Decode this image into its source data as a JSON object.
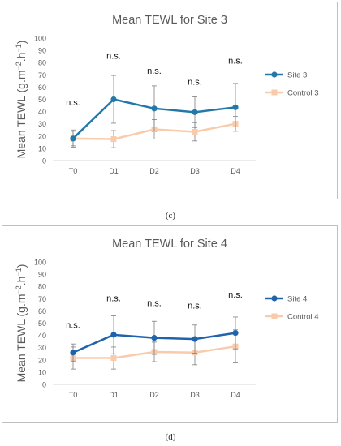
{
  "chart_data": [
    {
      "type": "line",
      "title": "Mean TEWL for Site 3",
      "ylabel_parts": [
        "Mean TEWL (g.m",
        "−2",
        ".h",
        "−1",
        ")"
      ],
      "categories": [
        "T0",
        "D1",
        "D2",
        "D3",
        "D4"
      ],
      "ylim": [
        0,
        100
      ],
      "yticks": [
        0,
        10,
        20,
        30,
        40,
        50,
        60,
        70,
        80,
        90,
        100
      ],
      "annotations": [
        "n.s.",
        "n.s.",
        "n.s.",
        "n.s.",
        "n.s."
      ],
      "annotation_y": [
        45,
        83,
        71,
        62,
        79
      ],
      "series": [
        {
          "name": "Site 3",
          "color": "#2279a9",
          "values": [
            18,
            50,
            42.5,
            39.5,
            43.5
          ],
          "err": [
            7,
            19.5,
            18.5,
            12.5,
            19.5
          ]
        },
        {
          "name": "Control 3",
          "color": "#f8cbad",
          "values": [
            18,
            17.5,
            25.5,
            23.5,
            30
          ],
          "err": [
            6,
            7,
            8,
            7.5,
            6
          ]
        }
      ],
      "caption": "(c)"
    },
    {
      "type": "line",
      "title": "Mean TEWL for Site 4",
      "ylabel_parts": [
        "Mean TEWL (g.m",
        "−2",
        ".h",
        "−1",
        ")"
      ],
      "categories": [
        "T0",
        "D1",
        "D2",
        "D3",
        "D4"
      ],
      "ylim": [
        0,
        100
      ],
      "yticks": [
        0,
        10,
        20,
        30,
        40,
        50,
        60,
        70,
        80,
        90,
        100
      ],
      "annotations": [
        "n.s.",
        "n.s.",
        "n.s.",
        "n.s.",
        "n.s."
      ],
      "annotation_y": [
        46,
        68,
        64,
        62,
        71
      ],
      "series": [
        {
          "name": "Site 4",
          "color": "#1f63ad",
          "values": [
            26,
            40.5,
            38,
            37,
            42
          ],
          "err": [
            7,
            15.5,
            13.5,
            11.5,
            13
          ]
        },
        {
          "name": "Control 4",
          "color": "#f8cbad",
          "values": [
            21.5,
            21.5,
            26.5,
            26,
            31
          ],
          "err": [
            9,
            9,
            8,
            10,
            13.5
          ]
        }
      ],
      "caption": "(d)"
    }
  ]
}
